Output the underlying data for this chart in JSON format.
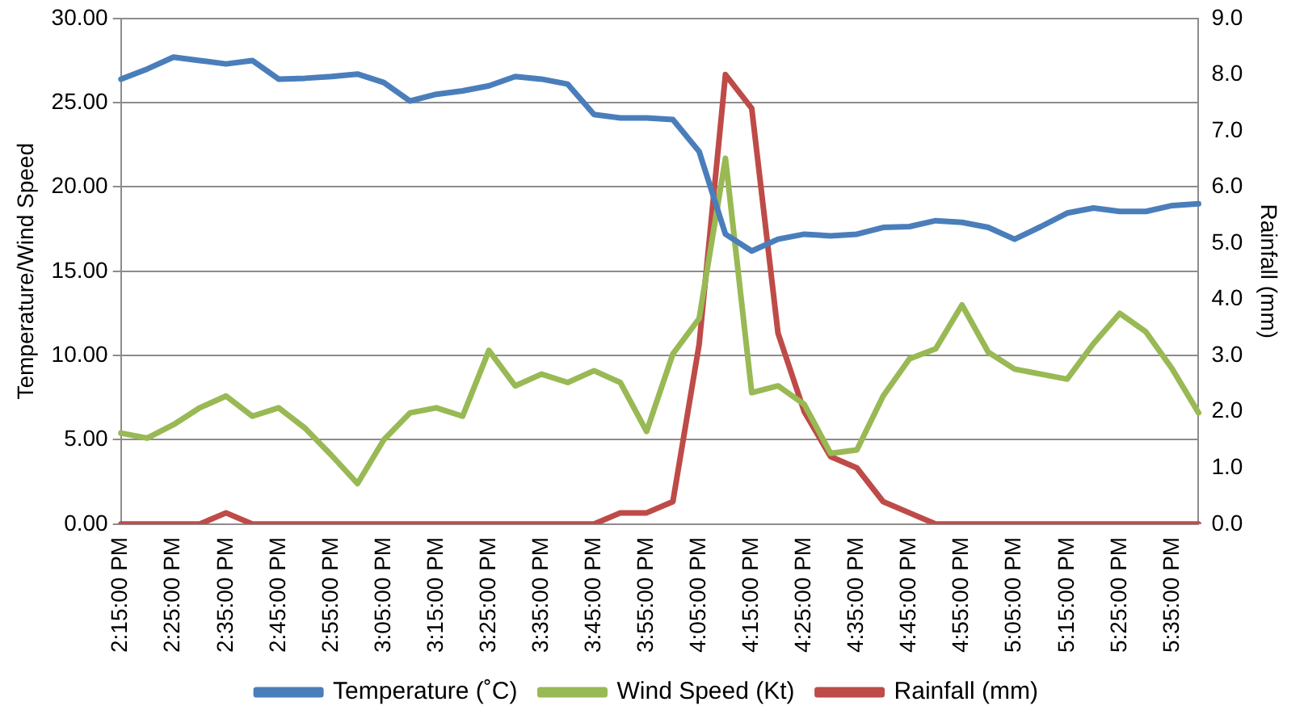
{
  "chart_data": {
    "type": "line",
    "categories": [
      "2:15:00 PM",
      null,
      "2:25:00 PM",
      null,
      "2:35:00 PM",
      null,
      "2:45:00 PM",
      null,
      "2:55:00 PM",
      null,
      "3:05:00 PM",
      null,
      "3:15:00 PM",
      null,
      "3:25:00 PM",
      null,
      "3:35:00 PM",
      null,
      "3:45:00 PM",
      null,
      "3:55:00 PM",
      null,
      "4:05:00 PM",
      null,
      "4:15:00 PM",
      null,
      "4:25:00 PM",
      null,
      "4:35:00 PM",
      null,
      "4:45:00 PM",
      null,
      "4:55:00 PM",
      null,
      "5:05:00 PM",
      null,
      "5:15:00 PM",
      null,
      "5:25:00 PM",
      null,
      "5:35:00 PM",
      null
    ],
    "series": [
      {
        "name": "Temperature (˚C)",
        "color": "#4a7ebb",
        "values": [
          26.4,
          27.0,
          27.7,
          27.5,
          27.3,
          27.5,
          26.4,
          26.45,
          26.55,
          26.7,
          26.2,
          25.1,
          25.5,
          25.7,
          26.0,
          26.55,
          26.4,
          26.1,
          24.3,
          24.1,
          24.1,
          24.0,
          22.1,
          17.2,
          16.2,
          16.9,
          17.2,
          17.1,
          17.2,
          17.6,
          17.65,
          18.0,
          17.9,
          17.6,
          16.9,
          17.65,
          18.45,
          18.75,
          18.55,
          18.55,
          18.9,
          19.0
        ]
      },
      {
        "name": "Wind Speed (Kt)",
        "color": "#98b954",
        "values": [
          5.4,
          5.1,
          5.9,
          6.9,
          7.6,
          6.4,
          6.9,
          5.7,
          4.1,
          2.4,
          5.0,
          6.6,
          6.9,
          6.4,
          10.3,
          8.2,
          8.9,
          8.4,
          9.1,
          8.4,
          5.5,
          10.1,
          12.2,
          21.7,
          7.8,
          8.2,
          7.1,
          4.2,
          4.4,
          7.6,
          9.8,
          10.4,
          13.0,
          10.2,
          9.2,
          8.9,
          8.6,
          10.7,
          12.5,
          11.4,
          9.2,
          6.6
        ]
      },
      {
        "name": "Rainfall (mm)",
        "color": "#be4b48",
        "axis": "y2",
        "values": [
          0,
          0,
          0,
          0,
          0.2,
          0,
          0,
          0,
          0,
          0,
          0,
          0,
          0,
          0,
          0,
          0,
          0,
          0,
          0,
          0.2,
          0.2,
          0.4,
          3.2,
          8.0,
          7.4,
          3.4,
          2.0,
          1.2,
          1.0,
          0.4,
          0.2,
          0,
          0,
          0,
          0,
          0,
          0,
          0,
          0,
          0,
          0,
          0
        ]
      }
    ],
    "ylabel": "Temperature/Wind Speed",
    "y2label": "Rainfall (mm)",
    "ylim": [
      0,
      30
    ],
    "yticks": [
      {
        "value": 0,
        "label": "0.00"
      },
      {
        "value": 5,
        "label": "5.00"
      },
      {
        "value": 10,
        "label": "10.00"
      },
      {
        "value": 15,
        "label": "15.00"
      },
      {
        "value": 20,
        "label": "20.00"
      },
      {
        "value": 25,
        "label": "25.00"
      },
      {
        "value": 30,
        "label": "30.00"
      }
    ],
    "y2lim": [
      0,
      9
    ],
    "y2ticks": [
      {
        "value": 0,
        "label": "0.0"
      },
      {
        "value": 1,
        "label": "1.0"
      },
      {
        "value": 2,
        "label": "2.0"
      },
      {
        "value": 3,
        "label": "3.0"
      },
      {
        "value": 4,
        "label": "4.0"
      },
      {
        "value": 5,
        "label": "5.0"
      },
      {
        "value": 6,
        "label": "6.0"
      },
      {
        "value": 7,
        "label": "7.0"
      },
      {
        "value": 8,
        "label": "8.0"
      },
      {
        "value": 9,
        "label": "9.0"
      }
    ],
    "grid": "y",
    "legend": "bottom",
    "marker": "none",
    "line_style": "solid"
  }
}
